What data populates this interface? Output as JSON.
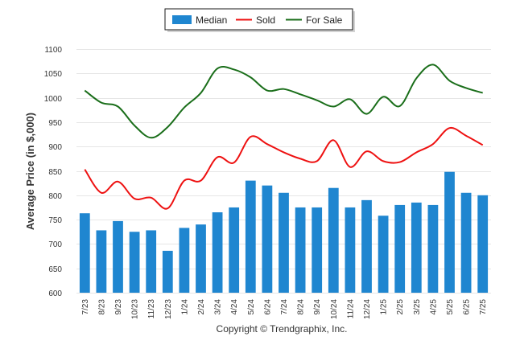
{
  "chart_data": {
    "type": "bar",
    "title": "",
    "ylabel": "Average Price (in $,000)",
    "xlabel": "",
    "ylim": [
      600,
      1100
    ],
    "yticks": [
      600,
      650,
      700,
      750,
      800,
      850,
      900,
      950,
      1000,
      1050,
      1100
    ],
    "grid": true,
    "legend_position": "top-center",
    "categories": [
      "7/23",
      "8/23",
      "9/23",
      "10/23",
      "11/23",
      "12/23",
      "1/24",
      "2/24",
      "3/24",
      "4/24",
      "5/24",
      "6/24",
      "7/24",
      "8/24",
      "9/24",
      "10/24",
      "11/24",
      "12/24",
      "1/25",
      "2/25",
      "3/25",
      "4/25",
      "5/25",
      "6/25",
      "7/25"
    ],
    "series": [
      {
        "name": "Median",
        "type": "bar",
        "color": "#1f86d0",
        "values": [
          763,
          728,
          747,
          725,
          728,
          686,
          733,
          740,
          765,
          775,
          830,
          820,
          805,
          775,
          775,
          815,
          775,
          790,
          758,
          780,
          785,
          780,
          848,
          805,
          800
        ]
      },
      {
        "name": "Sold",
        "type": "line",
        "color": "#ee1111",
        "values": [
          853,
          805,
          828,
          793,
          795,
          773,
          830,
          830,
          878,
          867,
          920,
          905,
          888,
          875,
          870,
          913,
          858,
          890,
          870,
          868,
          888,
          905,
          938,
          922,
          903
        ]
      },
      {
        "name": "For Sale",
        "type": "line",
        "color": "#1a6e1a",
        "values": [
          1015,
          990,
          982,
          943,
          918,
          940,
          980,
          1010,
          1060,
          1058,
          1042,
          1015,
          1018,
          1007,
          995,
          982,
          997,
          967,
          1002,
          983,
          1040,
          1068,
          1035,
          1020,
          1010
        ]
      }
    ]
  },
  "footer": {
    "copyright": "Copyright © Trendgraphix, Inc."
  }
}
